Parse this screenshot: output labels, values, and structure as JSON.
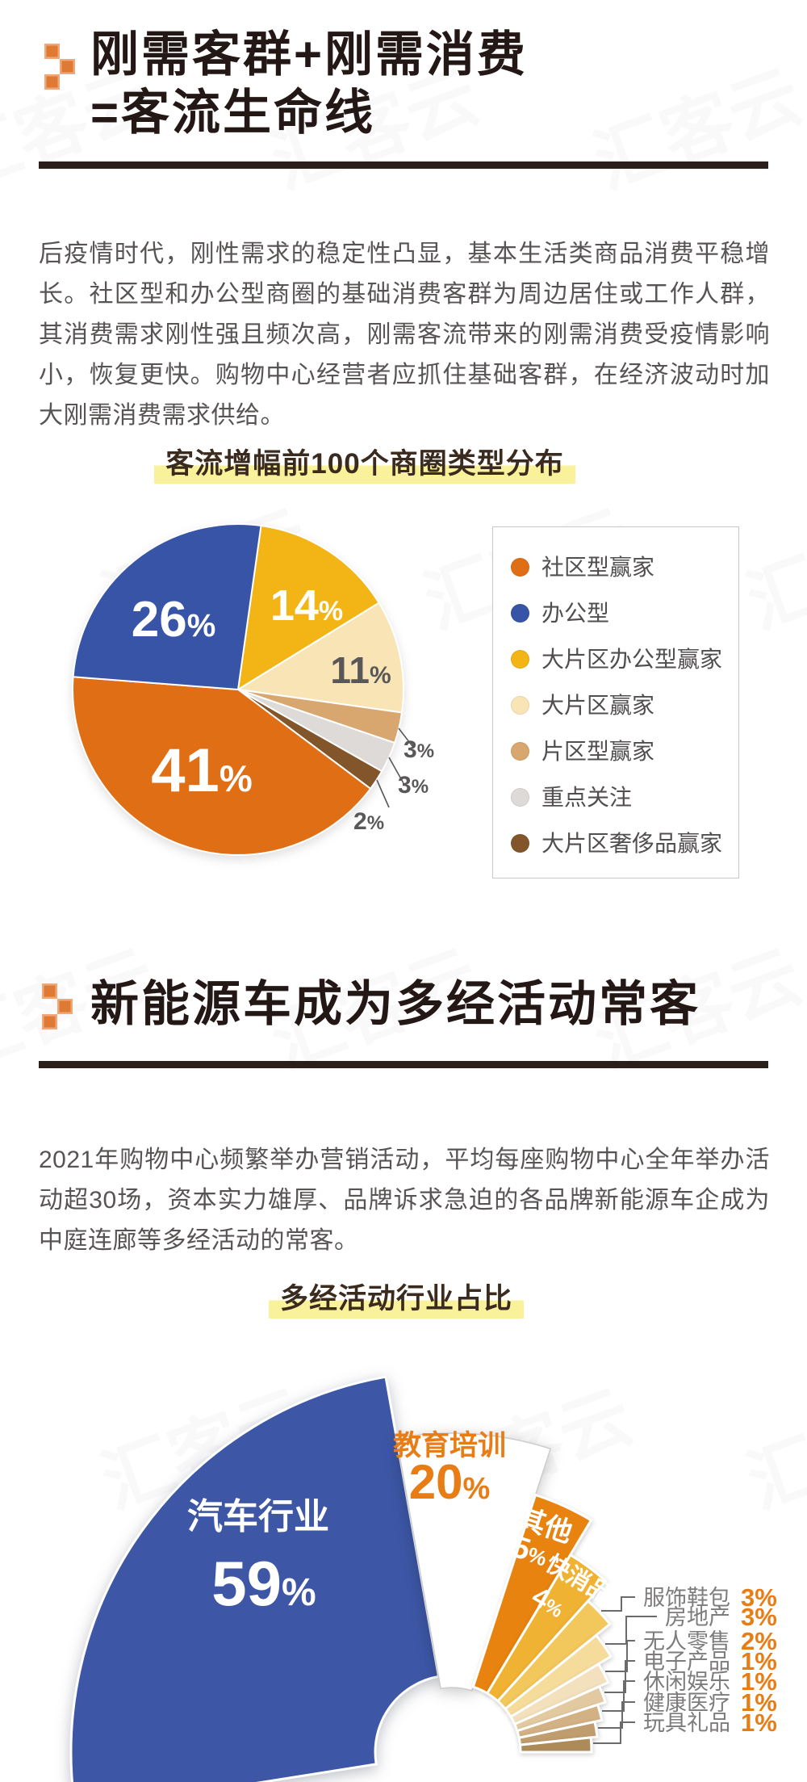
{
  "page": {
    "watermark": "汇客云",
    "background": "#ffffff"
  },
  "colors": {
    "accent_orange": "#e87c15",
    "title_dark": "#231815",
    "body_text": "#585454",
    "highlight_yellow": "#faf29b",
    "legend_border": "#c8c8c8",
    "side_label_gray": "#7d7b7b",
    "leader_line": "#6b6b6b",
    "pie_outside_label": "#595757"
  },
  "section1": {
    "icon": "pixel-steps-icon",
    "title_line1": "刚需客群+刚需消费",
    "title_line2": "=客流生命线",
    "paragraph": "后疫情时代，刚性需求的稳定性凸显，基本生活类商品消费平稳增长。社区型和办公型商圈的基础消费客群为周边居住或工作人群，其消费需求刚性强且频次高，刚需客流带来的刚需消费受疫情影响小，恢复更快。购物中心经营者应抓住基础客群，在经济波动时加大刚需消费需求供给。",
    "chart_title": "客流增幅前100个商圈类型分布"
  },
  "section2": {
    "icon": "pixel-steps-icon",
    "title": "新能源车成为多经活动常客",
    "paragraph": "2021年购物中心频繁举办营销活动，平均每座购物中心全年举办活动超30场，资本实力雄厚、品牌诉求急迫的各品牌新能源车企成为中庭连廊等多经活动的常客。",
    "chart_title": "多经活动行业占比"
  },
  "chart_data": [
    {
      "type": "pie",
      "title": "客流增幅前100个商圈类型分布",
      "unit": "%",
      "legend_position": "right",
      "start_clock_angle_deg": 8,
      "slices": [
        {
          "label": "社区型赢家",
          "value": 41,
          "color": "#e06e15"
        },
        {
          "label": "办公型",
          "value": 26,
          "color": "#3854a6"
        },
        {
          "label": "大片区办公型赢家",
          "value": 14,
          "color": "#f3b515"
        },
        {
          "label": "大片区赢家",
          "value": 11,
          "color": "#f9e4b5"
        },
        {
          "label": "片区型赢家",
          "value": 3,
          "color": "#d7a76f"
        },
        {
          "label": "重点关注",
          "value": 3,
          "color": "#dddad8"
        },
        {
          "label": "大片区奢侈品赢家",
          "value": 2,
          "color": "#82552a"
        }
      ]
    },
    {
      "type": "fan-rose",
      "title": "多经活动行业占比",
      "unit": "%",
      "slices": [
        {
          "label": "汽车行业",
          "value": 59,
          "color": "#3d57a6",
          "label_color": "#ffffff",
          "label_placement": "inside"
        },
        {
          "label": "教育培训",
          "value": 20,
          "color": "#ffffff",
          "label_color": "#e87c15",
          "label_placement": "inside"
        },
        {
          "label": "其他",
          "value": 5,
          "color": "#e8830f",
          "label_color": "#ffffff",
          "label_placement": "inside"
        },
        {
          "label": "快消品",
          "value": 4,
          "color": "#f0b232",
          "label_color": "#ffffff",
          "label_placement": "inside"
        },
        {
          "label": "服饰鞋包",
          "value": 3,
          "color": "#f2c75b",
          "label_placement": "callout"
        },
        {
          "label": "房地产",
          "value": 3,
          "color": "#f6dc9b",
          "label_placement": "callout"
        },
        {
          "label": "无人零售",
          "value": 2,
          "color": "#f3e0bc",
          "label_placement": "callout"
        },
        {
          "label": "电子产品",
          "value": 1,
          "color": "#e3c9a0",
          "label_placement": "callout"
        },
        {
          "label": "休闲娱乐",
          "value": 1,
          "color": "#d2b185",
          "label_placement": "callout"
        },
        {
          "label": "健康医疗",
          "value": 1,
          "color": "#bf9d6f",
          "label_placement": "callout"
        },
        {
          "label": "玩具礼品",
          "value": 1,
          "color": "#ad8b59",
          "label_placement": "callout"
        }
      ]
    }
  ]
}
